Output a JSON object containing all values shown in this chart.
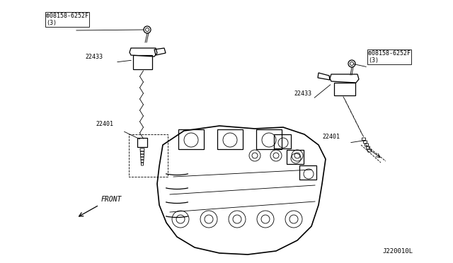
{
  "title": "",
  "bg_color": "#ffffff",
  "line_color": "#000000",
  "fig_width": 6.4,
  "fig_height": 3.72,
  "dpi": 100,
  "label_part_number_left_bolt": "®08158-6252F\n(3)",
  "label_22433_left": "22433",
  "label_22401_left": "22401",
  "label_part_number_right_bolt": "®08158-6252F\n(3)",
  "label_22433_right": "22433",
  "label_22401_right": "22401",
  "label_front": "FRONT",
  "label_diagram_id": "J220010L",
  "font_size_labels": 6,
  "font_size_front": 7,
  "font_size_id": 6.5
}
